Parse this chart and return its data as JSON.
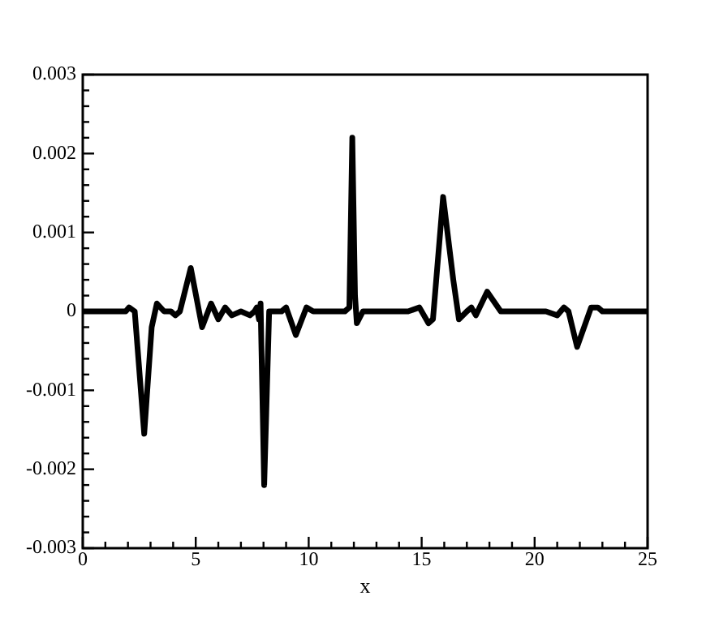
{
  "chart_data": {
    "type": "line",
    "xlabel": "x",
    "grid": false,
    "legend": false,
    "marker": "none",
    "line_style": "solid",
    "xlim": [
      0,
      25
    ],
    "ylim": [
      -0.003,
      0.003
    ],
    "xticks": [
      0,
      {
        "value": 1,
        "label": null
      },
      {
        "value": 2,
        "label": null
      },
      {
        "value": 3,
        "label": null
      },
      {
        "value": 4,
        "label": null
      },
      5,
      {
        "value": 6,
        "label": null
      },
      {
        "value": 7,
        "label": null
      },
      {
        "value": 8,
        "label": null
      },
      {
        "value": 9,
        "label": null
      },
      10,
      {
        "value": 11,
        "label": null
      },
      {
        "value": 12,
        "label": null
      },
      {
        "value": 13,
        "label": null
      },
      {
        "value": 14,
        "label": null
      },
      15,
      {
        "value": 16,
        "label": null
      },
      {
        "value": 17,
        "label": null
      },
      {
        "value": 18,
        "label": null
      },
      {
        "value": 19,
        "label": null
      },
      20,
      {
        "value": 21,
        "label": null
      },
      {
        "value": 22,
        "label": null
      },
      {
        "value": 23,
        "label": null
      },
      {
        "value": 24,
        "label": null
      },
      25
    ],
    "yticks": [
      -0.003,
      {
        "value": -0.0028,
        "label": null
      },
      {
        "value": -0.0026,
        "label": null
      },
      {
        "value": -0.0024,
        "label": null
      },
      {
        "value": -0.0022,
        "label": null
      },
      -0.002,
      {
        "value": -0.0018,
        "label": null
      },
      {
        "value": -0.0016,
        "label": null
      },
      {
        "value": -0.0014,
        "label": null
      },
      {
        "value": -0.0012,
        "label": null
      },
      -0.001,
      {
        "value": -0.0008,
        "label": null
      },
      {
        "value": -0.0006,
        "label": null
      },
      {
        "value": -0.0004,
        "label": null
      },
      {
        "value": -0.0002,
        "label": null
      },
      0,
      {
        "value": 0.0002,
        "label": null
      },
      {
        "value": 0.0004,
        "label": null
      },
      {
        "value": 0.0006,
        "label": null
      },
      {
        "value": 0.0008,
        "label": null
      },
      0.001,
      {
        "value": 0.0012,
        "label": null
      },
      {
        "value": 0.0014,
        "label": null
      },
      {
        "value": 0.0016,
        "label": null
      },
      {
        "value": 0.0018,
        "label": null
      },
      0.002,
      {
        "value": 0.0022,
        "label": null
      },
      {
        "value": 0.0024,
        "label": null
      },
      {
        "value": 0.0026,
        "label": null
      },
      {
        "value": 0.0028,
        "label": null
      },
      0.003
    ],
    "series": [
      {
        "color": "#000000",
        "x": [
          0,
          1.9,
          2.05,
          2.3,
          2.72,
          3.05,
          3.28,
          3.6,
          3.9,
          4.1,
          4.3,
          4.78,
          5.28,
          5.68,
          6.0,
          6.3,
          6.6,
          7.0,
          7.4,
          7.6,
          7.7,
          7.8,
          7.87,
          8.03,
          8.25,
          8.8,
          9.0,
          9.43,
          9.9,
          10.2,
          11.6,
          11.8,
          11.93,
          12.05,
          12.13,
          12.4,
          14.4,
          14.9,
          15.3,
          15.5,
          15.95,
          16.4,
          16.65,
          17.0,
          17.2,
          17.4,
          17.9,
          18.5,
          19.0,
          20.5,
          21.0,
          21.3,
          21.5,
          21.88,
          22.5,
          22.8,
          23,
          25
        ],
        "values": [
          0,
          0,
          5e-05,
          0,
          -0.00155,
          -0.0002,
          0.0001,
          0,
          0,
          -5e-05,
          0,
          0.00055,
          -0.0002,
          0.0001,
          -0.0001,
          5e-05,
          -5e-05,
          0,
          -5e-05,
          0,
          5e-05,
          -0.0001,
          0.0001,
          -0.0022,
          0,
          0,
          5e-05,
          -0.0003,
          5e-05,
          0,
          0,
          5e-05,
          0.0022,
          0.0002,
          -0.00015,
          0,
          0,
          5e-05,
          -0.00015,
          -0.0001,
          0.00145,
          0.0004,
          -0.0001,
          0,
          5e-05,
          -5e-05,
          0.00025,
          0,
          0,
          0,
          -5e-05,
          5e-05,
          0,
          -0.00045,
          5e-05,
          5e-05,
          0,
          0
        ]
      }
    ]
  }
}
